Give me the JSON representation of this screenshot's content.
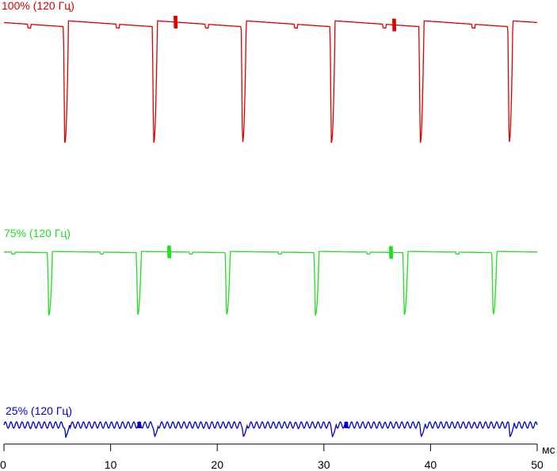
{
  "chart_data": {
    "type": "line",
    "xlabel": "мс",
    "xlim": [
      0,
      50
    ],
    "xticks": [
      0,
      10,
      20,
      30,
      40,
      50
    ],
    "tick_labels": [
      "0",
      "10",
      "20",
      "30",
      "40",
      "50"
    ],
    "period_ms": 8.333,
    "series": [
      {
        "name": "100% (120 Гц)",
        "color": "#dd0000",
        "baseline_start": 1.0,
        "baseline_end": 0.95,
        "dip_min": 0.0,
        "first_dip_ms": 5.7,
        "noise_bursts_ms": [
          16.1,
          36.6
        ]
      },
      {
        "name": "75% (120 Гц)",
        "color": "#22dd22",
        "baseline_start": 1.0,
        "baseline_end": 0.98,
        "dip_min": 0.0,
        "first_dip_ms": 4.2,
        "noise_bursts_ms": [
          15.5,
          36.3
        ]
      },
      {
        "name": "25% (120 Гц)",
        "color": "#0000cc",
        "baseline_start": 1.0,
        "baseline_end": 1.0,
        "dip_min": 0.0,
        "first_dip_ms": 5.8,
        "noise_bursts_ms": [
          12.7,
          32.1
        ]
      }
    ]
  }
}
